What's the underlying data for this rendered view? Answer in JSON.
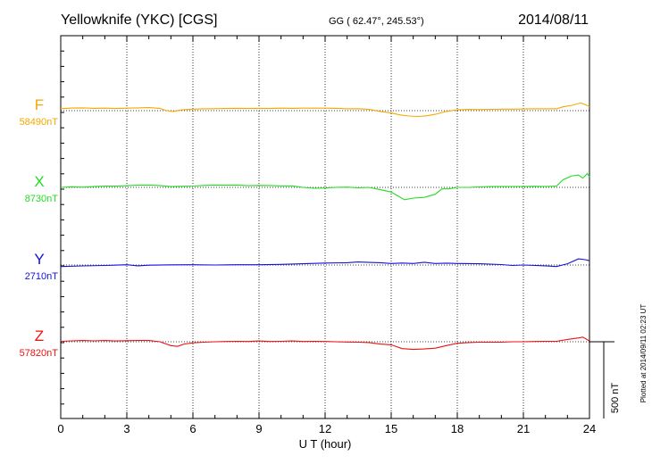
{
  "chart_data": {
    "type": "line",
    "title": "Yellowknife (YKC)  [CGS]",
    "coords": "GG ( 62.47°, 245.53°)",
    "date": "2014/08/11",
    "xlabel": "U T (hour)",
    "xlim": [
      0,
      24
    ],
    "x_ticks": [
      "0",
      "3",
      "6",
      "9",
      "12",
      "15",
      "18",
      "21",
      "24"
    ],
    "scale_label": "500 nT",
    "footer": "Plotted at 2014/09/11 02:23 UT",
    "grid": true,
    "series": [
      {
        "name": "F",
        "baseline_label": "58490nT",
        "baseline": 58490,
        "color": "#f5a800",
        "points": [
          [
            0,
            58503
          ],
          [
            0.5,
            58507
          ],
          [
            1,
            58508
          ],
          [
            1.5,
            58505
          ],
          [
            2,
            58506
          ],
          [
            2.5,
            58504
          ],
          [
            3,
            58506
          ],
          [
            3.5,
            58508
          ],
          [
            4,
            58510
          ],
          [
            4.5,
            58505
          ],
          [
            4.8,
            58490
          ],
          [
            5.1,
            58485
          ],
          [
            5.5,
            58495
          ],
          [
            6,
            58500
          ],
          [
            6.5,
            58502
          ],
          [
            7,
            58503
          ],
          [
            7.5,
            58504
          ],
          [
            8,
            58505
          ],
          [
            8.5,
            58504
          ],
          [
            9,
            58505
          ],
          [
            9.5,
            58504
          ],
          [
            10,
            58506
          ],
          [
            10.5,
            58505
          ],
          [
            11,
            58506
          ],
          [
            11.5,
            58506
          ],
          [
            12,
            58506
          ],
          [
            12.5,
            58505
          ],
          [
            13,
            58502
          ],
          [
            13.5,
            58503
          ],
          [
            14,
            58498
          ],
          [
            14.5,
            58485
          ],
          [
            15,
            58475
          ],
          [
            15.4,
            58462
          ],
          [
            15.8,
            58455
          ],
          [
            16.2,
            58452
          ],
          [
            16.6,
            58456
          ],
          [
            17,
            58466
          ],
          [
            17.5,
            58485
          ],
          [
            18,
            58495
          ],
          [
            18.5,
            58498
          ],
          [
            19,
            58497
          ],
          [
            19.5,
            58499
          ],
          [
            20,
            58500
          ],
          [
            20.5,
            58500
          ],
          [
            21,
            58501
          ],
          [
            21.5,
            58502
          ],
          [
            22,
            58502
          ],
          [
            22.5,
            58502
          ],
          [
            22.8,
            58515
          ],
          [
            23.2,
            58525
          ],
          [
            23.6,
            58540
          ],
          [
            23.8,
            58530
          ],
          [
            24,
            58517
          ]
        ]
      },
      {
        "name": "X",
        "baseline_label": "8730nT",
        "baseline": 8730,
        "color": "#22dd22",
        "points": [
          [
            0,
            8730
          ],
          [
            0.5,
            8734
          ],
          [
            1,
            8731
          ],
          [
            1.5,
            8735
          ],
          [
            2,
            8738
          ],
          [
            2.5,
            8738
          ],
          [
            3,
            8741
          ],
          [
            3.5,
            8744
          ],
          [
            4,
            8745
          ],
          [
            4.5,
            8742
          ],
          [
            5,
            8735
          ],
          [
            5.5,
            8737
          ],
          [
            6,
            8739
          ],
          [
            6.5,
            8743
          ],
          [
            7,
            8745
          ],
          [
            7.5,
            8744
          ],
          [
            8,
            8745
          ],
          [
            8.5,
            8741
          ],
          [
            9,
            8743
          ],
          [
            9.5,
            8742
          ],
          [
            10,
            8740
          ],
          [
            10.5,
            8740
          ],
          [
            11,
            8730
          ],
          [
            11.5,
            8724
          ],
          [
            12,
            8726
          ],
          [
            12.5,
            8730
          ],
          [
            13,
            8732
          ],
          [
            13.5,
            8727
          ],
          [
            14,
            8730
          ],
          [
            14.5,
            8715
          ],
          [
            15,
            8700
          ],
          [
            15.3,
            8675
          ],
          [
            15.6,
            8650
          ],
          [
            16,
            8660
          ],
          [
            16.5,
            8665
          ],
          [
            17,
            8685
          ],
          [
            17.3,
            8720
          ],
          [
            17.6,
            8720
          ],
          [
            18,
            8730
          ],
          [
            18.5,
            8730
          ],
          [
            19,
            8733
          ],
          [
            19.5,
            8735
          ],
          [
            20,
            8735
          ],
          [
            20.5,
            8736
          ],
          [
            21,
            8735
          ],
          [
            21.5,
            8737
          ],
          [
            22,
            8736
          ],
          [
            22.5,
            8738
          ],
          [
            22.8,
            8780
          ],
          [
            23.2,
            8805
          ],
          [
            23.5,
            8810
          ],
          [
            23.7,
            8790
          ],
          [
            23.9,
            8820
          ],
          [
            24,
            8800
          ]
        ]
      },
      {
        "name": "Y",
        "baseline_label": "2710nT",
        "baseline": 2710,
        "color": "#1111dd",
        "points": [
          [
            0,
            2700
          ],
          [
            1,
            2704
          ],
          [
            2,
            2707
          ],
          [
            3,
            2712
          ],
          [
            3.5,
            2705
          ],
          [
            4,
            2709
          ],
          [
            5,
            2711
          ],
          [
            6,
            2712
          ],
          [
            7,
            2710
          ],
          [
            8,
            2712
          ],
          [
            9,
            2712
          ],
          [
            10,
            2714
          ],
          [
            11,
            2718
          ],
          [
            12,
            2723
          ],
          [
            13,
            2725
          ],
          [
            13.5,
            2730
          ],
          [
            14,
            2727
          ],
          [
            14.5,
            2725
          ],
          [
            15,
            2720
          ],
          [
            15.5,
            2723
          ],
          [
            16,
            2720
          ],
          [
            16.5,
            2728
          ],
          [
            17,
            2720
          ],
          [
            17.5,
            2722
          ],
          [
            18,
            2720
          ],
          [
            19,
            2718
          ],
          [
            20,
            2713
          ],
          [
            20.5,
            2707
          ],
          [
            21,
            2710
          ],
          [
            22,
            2705
          ],
          [
            22.5,
            2700
          ],
          [
            23,
            2718
          ],
          [
            23.5,
            2750
          ],
          [
            23.8,
            2745
          ],
          [
            24,
            2738
          ]
        ]
      },
      {
        "name": "Z",
        "baseline_label": "57820nT",
        "baseline": 57820,
        "color": "#ee1111",
        "points": [
          [
            0,
            57823
          ],
          [
            0.5,
            57826
          ],
          [
            1,
            57828
          ],
          [
            1.5,
            57826
          ],
          [
            2,
            57828
          ],
          [
            2.5,
            57825
          ],
          [
            3,
            57827
          ],
          [
            3.5,
            57828
          ],
          [
            4,
            57828
          ],
          [
            4.5,
            57820
          ],
          [
            5,
            57795
          ],
          [
            5.3,
            57790
          ],
          [
            5.6,
            57805
          ],
          [
            6,
            57813
          ],
          [
            6.5,
            57817
          ],
          [
            7,
            57820
          ],
          [
            7.5,
            57822
          ],
          [
            8,
            57823
          ],
          [
            8.5,
            57822
          ],
          [
            9,
            57825
          ],
          [
            9.5,
            57822
          ],
          [
            10,
            57823
          ],
          [
            10.5,
            57825
          ],
          [
            11,
            57822
          ],
          [
            11.5,
            57823
          ],
          [
            12,
            57822
          ],
          [
            12.5,
            57820
          ],
          [
            13,
            57818
          ],
          [
            13.5,
            57817
          ],
          [
            14,
            57815
          ],
          [
            14.5,
            57805
          ],
          [
            15,
            57800
          ],
          [
            15.5,
            57775
          ],
          [
            16,
            57770
          ],
          [
            16.5,
            57773
          ],
          [
            17,
            57778
          ],
          [
            17.5,
            57795
          ],
          [
            18,
            57810
          ],
          [
            18.5,
            57815
          ],
          [
            19,
            57817
          ],
          [
            19.5,
            57817
          ],
          [
            20,
            57817
          ],
          [
            20.5,
            57820
          ],
          [
            21,
            57820
          ],
          [
            21.5,
            57822
          ],
          [
            22,
            57823
          ],
          [
            22.5,
            57823
          ],
          [
            23,
            57835
          ],
          [
            23.5,
            57845
          ],
          [
            23.7,
            57850
          ],
          [
            24,
            57825
          ]
        ]
      }
    ]
  }
}
